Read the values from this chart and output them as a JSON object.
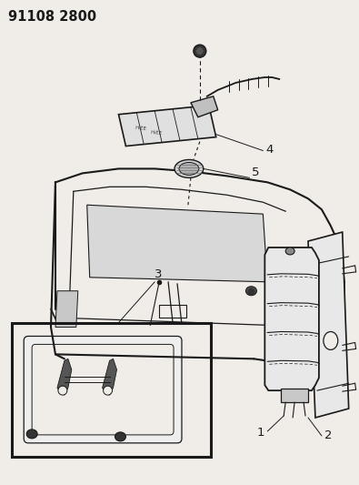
{
  "title_code": "91108 2800",
  "bg_color": "#f0ede8",
  "line_color": "#1a1a1a",
  "label_color": "#1a1a1a",
  "title_fontsize": 10.5,
  "label_fontsize": 9.5,
  "figsize": [
    3.95,
    5.33
  ],
  "dpi": 100
}
